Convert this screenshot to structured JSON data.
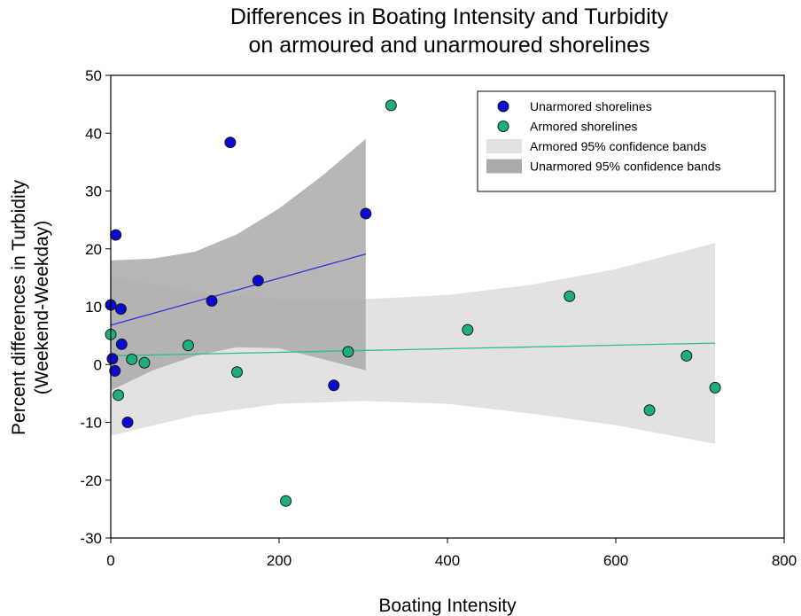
{
  "chart_data": {
    "type": "scatter",
    "title": [
      "Differences in Boating Intensity and Turbidity",
      "on armoured and unarmoured shorelines"
    ],
    "xlabel": "Boating Intensity",
    "ylabel": [
      "Percent differences in Turbidity",
      "(Weekend-Weekday)"
    ],
    "xlim": [
      0,
      800
    ],
    "ylim": [
      -30,
      50
    ],
    "xticks": [
      0,
      200,
      400,
      600,
      800
    ],
    "yticks": [
      -30,
      -20,
      -10,
      0,
      10,
      20,
      30,
      40,
      50
    ],
    "grid": false,
    "legend_position": "top-right",
    "series": [
      {
        "name": "Unarmored shorelines",
        "color": "#0a0ad0",
        "points": [
          [
            0,
            10.3
          ],
          [
            2,
            1.0
          ],
          [
            6,
            22.4
          ],
          [
            5,
            -1.1
          ],
          [
            12,
            9.6
          ],
          [
            13,
            3.5
          ],
          [
            20,
            -10.0
          ],
          [
            120,
            11.0
          ],
          [
            142,
            38.4
          ],
          [
            175,
            14.5
          ],
          [
            265,
            -3.6
          ],
          [
            303,
            26.1
          ]
        ],
        "fit": {
          "x": [
            0,
            303
          ],
          "y": [
            6.8,
            19.1
          ],
          "color": "#3333dd"
        },
        "ci_band": {
          "name": "Unarmored 95% confidence bands",
          "color": "#aaaaaa",
          "x": [
            0,
            50,
            100,
            150,
            200,
            250,
            303
          ],
          "upper": [
            18.0,
            18.3,
            19.5,
            22.5,
            27.0,
            32.5,
            39.0
          ],
          "lower": [
            -4.5,
            -1.0,
            1.5,
            3.0,
            2.8,
            1.0,
            -1.0
          ]
        }
      },
      {
        "name": "Armored shorelines",
        "color": "#1fae80",
        "points": [
          [
            0,
            5.2
          ],
          [
            9,
            -5.3
          ],
          [
            25,
            0.9
          ],
          [
            40,
            0.3
          ],
          [
            92,
            3.3
          ],
          [
            150,
            -1.3
          ],
          [
            208,
            -23.6
          ],
          [
            282,
            2.2
          ],
          [
            333,
            44.8
          ],
          [
            424,
            6.0
          ],
          [
            545,
            11.8
          ],
          [
            640,
            -7.9
          ],
          [
            684,
            1.5
          ],
          [
            718,
            -4.0
          ]
        ],
        "fit": {
          "x": [
            0,
            718
          ],
          "y": [
            1.5,
            3.7
          ],
          "color": "#2bbf8a"
        },
        "ci_band": {
          "name": "Armored 95% confidence bands",
          "color": "#e2e2e2",
          "x": [
            0,
            100,
            200,
            300,
            400,
            500,
            600,
            718
          ],
          "upper": [
            15.2,
            12.5,
            11.3,
            11.3,
            12.0,
            13.8,
            16.5,
            21.0
          ],
          "lower": [
            -12.3,
            -8.8,
            -6.8,
            -6.3,
            -6.8,
            -8.5,
            -10.5,
            -13.7
          ]
        }
      }
    ]
  }
}
